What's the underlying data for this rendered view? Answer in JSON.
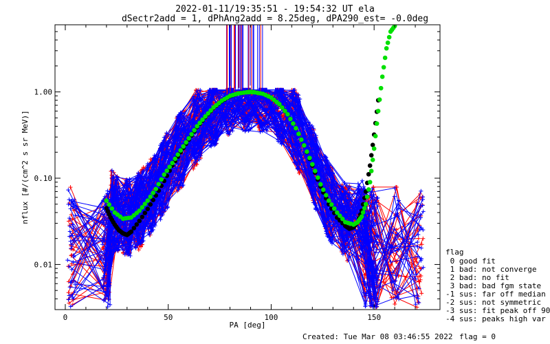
{
  "chart_data": {
    "type": "line",
    "title": "2022-01-11/19:35:51 - 19:54:32 UT ela",
    "subtitle": "dSectr2add = 1, dPhAng2add = 8.25deg, dPA290_est=  -0.0deg",
    "xlabel": "PA [deg]",
    "ylabel": "nflux [#/(cm^2 s sr MeV)]",
    "xlim": [
      -5,
      182
    ],
    "ylim": [
      0.003,
      6.0
    ],
    "yscale": "log",
    "x_ticks": [
      0,
      50,
      100,
      150
    ],
    "x_tick_labels": [
      "0",
      "50",
      "100",
      "150"
    ],
    "y_ticks": [
      0.01,
      0.1,
      1.0
    ],
    "y_tick_labels": [
      "0.01",
      "0.10",
      "1.00"
    ],
    "grid": false,
    "series": [
      {
        "color": "#00e000",
        "x": [
          20,
          24,
          28,
          32,
          36,
          40,
          44,
          48,
          52,
          56,
          60,
          64,
          68,
          72,
          76,
          80,
          84,
          88,
          90,
          92,
          96,
          100,
          104,
          108,
          112,
          116,
          120,
          124,
          128,
          132,
          136,
          140,
          142,
          144,
          146,
          148,
          150,
          152,
          154,
          156,
          158,
          160
        ],
        "y": [
          0.055,
          0.04,
          0.034,
          0.035,
          0.042,
          0.055,
          0.075,
          0.11,
          0.15,
          0.21,
          0.29,
          0.4,
          0.52,
          0.66,
          0.79,
          0.9,
          0.96,
          0.99,
          1.0,
          0.99,
          0.95,
          0.86,
          0.72,
          0.55,
          0.38,
          0.24,
          0.145,
          0.085,
          0.055,
          0.04,
          0.031,
          0.029,
          0.031,
          0.036,
          0.05,
          0.09,
          0.22,
          0.6,
          1.5,
          3.2,
          5.0,
          5.8
        ]
      },
      {
        "color": "#000000",
        "x": [
          20,
          22,
          24,
          26,
          28,
          30,
          32,
          36,
          40,
          44,
          48,
          52,
          56,
          60,
          64,
          68,
          72,
          76,
          80,
          84,
          88,
          90,
          92,
          96,
          100,
          104,
          108,
          112,
          116,
          120,
          124,
          128,
          132,
          136,
          138,
          140,
          142,
          144,
          146,
          148,
          150,
          152
        ],
        "y": [
          0.045,
          0.035,
          0.029,
          0.025,
          0.023,
          0.022,
          0.024,
          0.032,
          0.044,
          0.063,
          0.093,
          0.14,
          0.2,
          0.28,
          0.39,
          0.51,
          0.65,
          0.78,
          0.89,
          0.96,
          0.99,
          1.0,
          0.99,
          0.95,
          0.86,
          0.72,
          0.55,
          0.38,
          0.24,
          0.14,
          0.08,
          0.05,
          0.035,
          0.028,
          0.026,
          0.027,
          0.031,
          0.042,
          0.07,
          0.14,
          0.32,
          0.8
        ]
      }
    ],
    "legend_title": "flag",
    "legend_entries": [
      " 0 good fit",
      " 1 bad: not converge",
      " 2 bad: no fit",
      " 3 bad: bad fgm state",
      "-1 sus: far off median",
      "-2 sus: not symmetric",
      "-3 sus: fit peak off 90",
      "-4 sus: peaks high var"
    ],
    "legend_position": "right",
    "footer_created": "Created: Tue Mar 08 03:46:55 2022",
    "footer_flag": "flag = 0"
  }
}
